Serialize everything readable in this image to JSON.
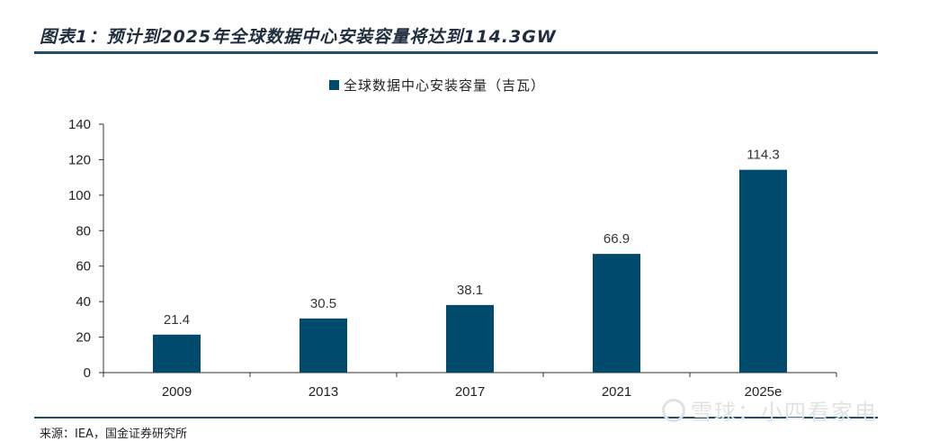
{
  "figure": {
    "title": "图表1：预计到2025年全球数据中心安装容量将达到114.3GW",
    "source": "来源：IEA，国金证券研究所",
    "watermark": "雪球：小四看家电"
  },
  "colors": {
    "bar": "#004a6e",
    "rule": "#1f4e6b",
    "axis": "#333333"
  },
  "chart_data": {
    "type": "bar",
    "title": "",
    "categories": [
      "2009",
      "2013",
      "2017",
      "2021",
      "2025e"
    ],
    "series": [
      {
        "name": "全球数据中心安装容量（吉瓦）",
        "values": [
          21.4,
          30.5,
          38.1,
          66.9,
          114.3
        ]
      }
    ],
    "data_labels": [
      "21.4",
      "30.5",
      "38.1",
      "66.9",
      "114.3"
    ],
    "yticks": [
      "0",
      "20",
      "40",
      "60",
      "80",
      "100",
      "120",
      "140"
    ],
    "ylim": [
      0,
      140
    ],
    "xlabel": "",
    "ylabel": "",
    "legend_position": "top-center",
    "grid": false
  }
}
